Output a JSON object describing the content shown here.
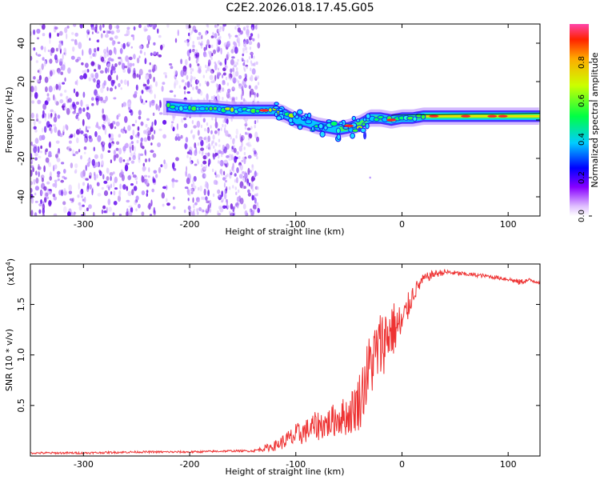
{
  "title": "C2E2.2026.018.17.45.G05",
  "chart_data": [
    {
      "type": "heatmap",
      "name": "spectrogram",
      "xlabel": "Height of straight line (km)",
      "ylabel": "Frequency (Hz)",
      "xlim": [
        -350,
        130
      ],
      "ylim": [
        -50,
        50
      ],
      "xticks": [
        -300,
        -200,
        -100,
        0,
        100
      ],
      "yticks": [
        -40,
        -20,
        0,
        20,
        40
      ],
      "xtick_labels": [
        "-300",
        "-200",
        "-100",
        "0",
        "100"
      ],
      "ytick_labels": [
        "-40",
        "-20",
        "0",
        "20",
        "40"
      ],
      "noise_region_x": [
        -350,
        -135
      ],
      "signal_track": {
        "x": [
          -220,
          -200,
          -180,
          -160,
          -140,
          -130,
          -120,
          -110,
          -100,
          -90,
          -80,
          -70,
          -60,
          -50,
          -40,
          -30,
          -20,
          -10,
          0,
          10,
          20,
          40,
          60,
          80,
          100,
          120,
          130
        ],
        "freq": [
          7,
          6,
          6,
          5,
          5,
          5,
          5,
          3,
          0,
          -1,
          -3,
          -4,
          -5,
          -4,
          -2,
          1,
          1,
          0,
          1,
          1,
          2,
          2,
          2,
          2,
          2,
          2,
          2
        ]
      },
      "colorbar": {
        "label": "Normalized spectral amplitude",
        "range": [
          0,
          1
        ],
        "ticks": [
          0.0,
          0.2,
          0.4,
          0.6,
          0.8
        ],
        "tick_labels": [
          "0.0",
          "0.2",
          "0.4",
          "0.6",
          "0.8"
        ]
      }
    },
    {
      "type": "line",
      "name": "snr",
      "xlabel": "Height of straight line (km)",
      "ylabel": "SNR (10 * v/v)",
      "scale_label": "(x10",
      "scale_exp": "4",
      "scale_close": ")",
      "xlim": [
        -350,
        130
      ],
      "ylim": [
        0,
        1.9
      ],
      "xticks": [
        -300,
        -200,
        -100,
        0,
        100
      ],
      "yticks": [
        0.5,
        1.0,
        1.5
      ],
      "xtick_labels": [
        "-300",
        "-200",
        "-100",
        "0",
        "100"
      ],
      "ytick_labels": [
        "0.5",
        "1.0",
        "1.5"
      ],
      "color": "#ee3333",
      "series": {
        "x": [
          -350,
          -300,
          -250,
          -200,
          -160,
          -140,
          -120,
          -110,
          -100,
          -90,
          -80,
          -70,
          -60,
          -50,
          -40,
          -30,
          -20,
          -10,
          0,
          10,
          20,
          30,
          40,
          60,
          80,
          100,
          110,
          120,
          130
        ],
        "mean": [
          0.03,
          0.03,
          0.04,
          0.04,
          0.05,
          0.05,
          0.1,
          0.15,
          0.2,
          0.25,
          0.3,
          0.32,
          0.38,
          0.4,
          0.55,
          0.9,
          1.1,
          1.25,
          1.3,
          1.6,
          1.75,
          1.8,
          1.82,
          1.8,
          1.78,
          1.75,
          1.72,
          1.74,
          1.72
        ],
        "amp": [
          0.01,
          0.01,
          0.01,
          0.01,
          0.01,
          0.01,
          0.05,
          0.08,
          0.12,
          0.12,
          0.15,
          0.15,
          0.18,
          0.2,
          0.3,
          0.35,
          0.35,
          0.3,
          0.2,
          0.1,
          0.05,
          0.04,
          0.03,
          0.02,
          0.02,
          0.02,
          0.03,
          0.02,
          0.02
        ]
      }
    }
  ]
}
